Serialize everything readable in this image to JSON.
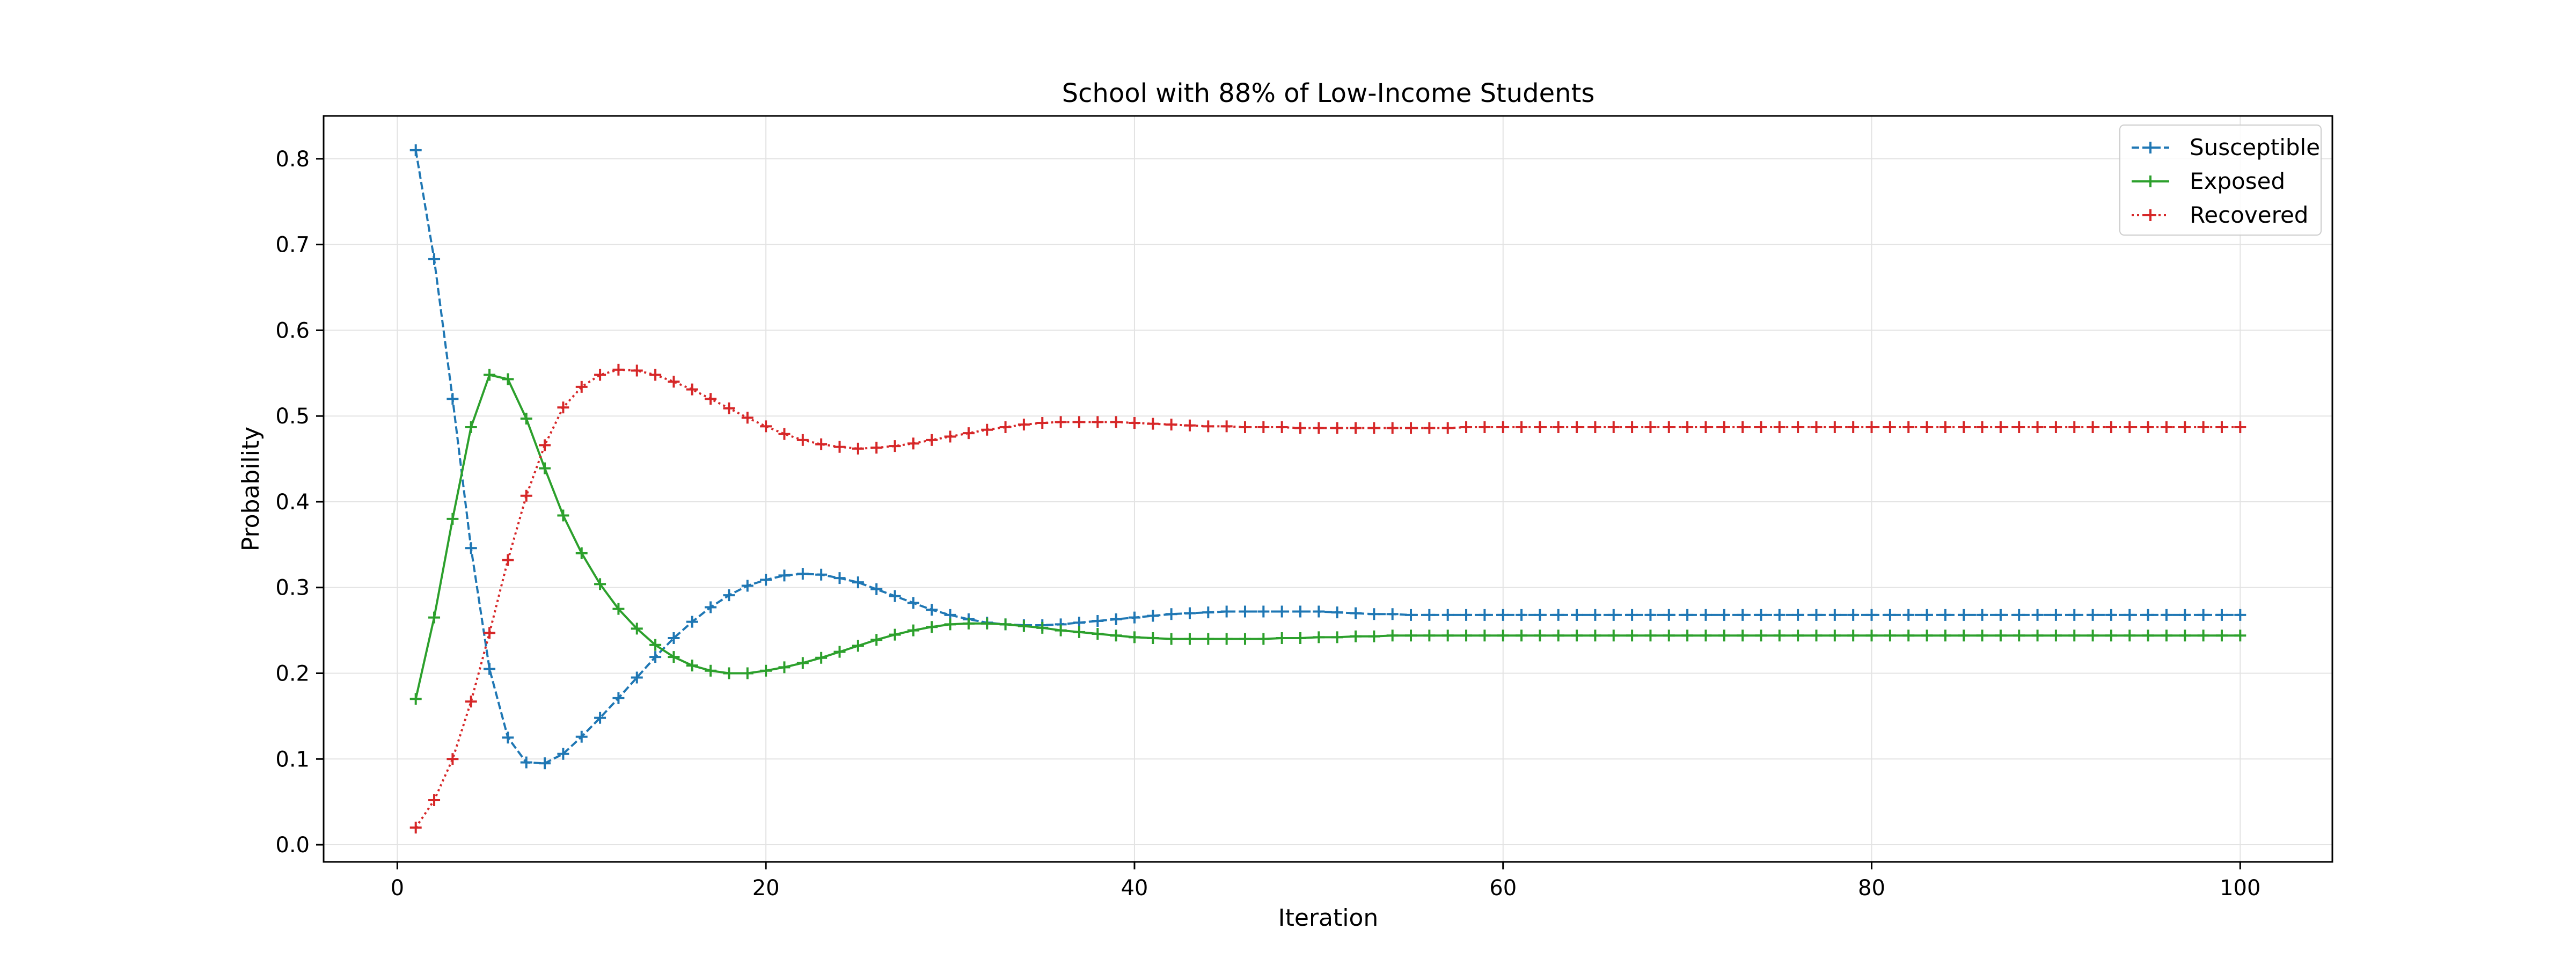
{
  "chart_data": {
    "type": "line",
    "title": "School with 88% of Low-Income Students",
    "xlabel": "Iteration",
    "ylabel": "Probability",
    "xlim": [
      -4.0,
      105.0
    ],
    "ylim": [
      -0.02,
      0.85
    ],
    "xticks": [
      0,
      20,
      40,
      60,
      80,
      100
    ],
    "yticks": [
      0.0,
      0.1,
      0.2,
      0.3,
      0.4,
      0.5,
      0.6,
      0.7,
      0.8
    ],
    "grid": true,
    "legend_position": "top-right",
    "marker": "+",
    "x": [
      1,
      2,
      3,
      4,
      5,
      6,
      7,
      8,
      9,
      10,
      11,
      12,
      13,
      14,
      15,
      16,
      17,
      18,
      19,
      20,
      21,
      22,
      23,
      24,
      25,
      26,
      27,
      28,
      29,
      30,
      31,
      32,
      33,
      34,
      35,
      36,
      37,
      38,
      39,
      40,
      41,
      42,
      43,
      44,
      45,
      46,
      47,
      48,
      49,
      50,
      51,
      52,
      53,
      54,
      55,
      56,
      57,
      58,
      59,
      60,
      61,
      62,
      63,
      64,
      65,
      66,
      67,
      68,
      69,
      70,
      71,
      72,
      73,
      74,
      75,
      76,
      77,
      78,
      79,
      80,
      81,
      82,
      83,
      84,
      85,
      86,
      87,
      88,
      89,
      90,
      91,
      92,
      93,
      94,
      95,
      96,
      97,
      98,
      99,
      100
    ],
    "series": [
      {
        "name": "Susceptible",
        "color": "#1f77b4",
        "line_style": "dashed",
        "values": [
          0.81,
          0.683,
          0.52,
          0.346,
          0.205,
          0.125,
          0.096,
          0.095,
          0.106,
          0.126,
          0.148,
          0.171,
          0.195,
          0.219,
          0.241,
          0.26,
          0.277,
          0.291,
          0.302,
          0.309,
          0.314,
          0.316,
          0.315,
          0.311,
          0.306,
          0.298,
          0.29,
          0.282,
          0.274,
          0.268,
          0.263,
          0.259,
          0.257,
          0.256,
          0.256,
          0.257,
          0.259,
          0.261,
          0.263,
          0.265,
          0.267,
          0.269,
          0.27,
          0.271,
          0.272,
          0.272,
          0.272,
          0.272,
          0.272,
          0.272,
          0.271,
          0.27,
          0.269,
          0.269,
          0.268,
          0.268,
          0.268,
          0.268,
          0.268,
          0.268,
          0.268,
          0.268,
          0.268,
          0.268,
          0.268,
          0.268,
          0.268,
          0.268,
          0.268,
          0.268,
          0.268,
          0.268,
          0.268,
          0.268,
          0.268,
          0.268,
          0.268,
          0.268,
          0.268,
          0.268,
          0.268,
          0.268,
          0.268,
          0.268,
          0.268,
          0.268,
          0.268,
          0.268,
          0.268,
          0.268,
          0.268,
          0.268,
          0.268,
          0.268,
          0.268,
          0.268,
          0.268,
          0.268,
          0.268,
          0.268
        ]
      },
      {
        "name": "Exposed",
        "color": "#2ca02c",
        "line_style": "solid",
        "values": [
          0.17,
          0.265,
          0.38,
          0.487,
          0.548,
          0.543,
          0.497,
          0.439,
          0.384,
          0.34,
          0.304,
          0.275,
          0.252,
          0.233,
          0.219,
          0.209,
          0.203,
          0.2,
          0.2,
          0.203,
          0.207,
          0.212,
          0.218,
          0.225,
          0.232,
          0.239,
          0.245,
          0.25,
          0.254,
          0.257,
          0.258,
          0.258,
          0.257,
          0.255,
          0.253,
          0.25,
          0.248,
          0.246,
          0.244,
          0.242,
          0.241,
          0.24,
          0.24,
          0.24,
          0.24,
          0.24,
          0.24,
          0.241,
          0.241,
          0.242,
          0.242,
          0.243,
          0.243,
          0.244,
          0.244,
          0.244,
          0.244,
          0.244,
          0.244,
          0.244,
          0.244,
          0.244,
          0.244,
          0.244,
          0.244,
          0.244,
          0.244,
          0.244,
          0.244,
          0.244,
          0.244,
          0.244,
          0.244,
          0.244,
          0.244,
          0.244,
          0.244,
          0.244,
          0.244,
          0.244,
          0.244,
          0.244,
          0.244,
          0.244,
          0.244,
          0.244,
          0.244,
          0.244,
          0.244,
          0.244,
          0.244,
          0.244,
          0.244,
          0.244,
          0.244,
          0.244,
          0.244,
          0.244,
          0.244,
          0.244
        ]
      },
      {
        "name": "Recovered",
        "color": "#d62728",
        "line_style": "dotted",
        "values": [
          0.02,
          0.052,
          0.1,
          0.167,
          0.247,
          0.332,
          0.407,
          0.466,
          0.51,
          0.534,
          0.548,
          0.554,
          0.553,
          0.548,
          0.54,
          0.531,
          0.52,
          0.509,
          0.498,
          0.488,
          0.479,
          0.472,
          0.467,
          0.464,
          0.462,
          0.463,
          0.465,
          0.468,
          0.472,
          0.476,
          0.48,
          0.484,
          0.487,
          0.49,
          0.492,
          0.493,
          0.493,
          0.493,
          0.493,
          0.492,
          0.491,
          0.49,
          0.489,
          0.488,
          0.488,
          0.487,
          0.487,
          0.487,
          0.486,
          0.486,
          0.486,
          0.486,
          0.486,
          0.486,
          0.486,
          0.486,
          0.486,
          0.487,
          0.487,
          0.487,
          0.487,
          0.487,
          0.487,
          0.487,
          0.487,
          0.487,
          0.487,
          0.487,
          0.487,
          0.487,
          0.487,
          0.487,
          0.487,
          0.487,
          0.487,
          0.487,
          0.487,
          0.487,
          0.487,
          0.487,
          0.487,
          0.487,
          0.487,
          0.487,
          0.487,
          0.487,
          0.487,
          0.487,
          0.487,
          0.487,
          0.487,
          0.487,
          0.487,
          0.487,
          0.487,
          0.487,
          0.487,
          0.487,
          0.487,
          0.487
        ]
      }
    ]
  }
}
